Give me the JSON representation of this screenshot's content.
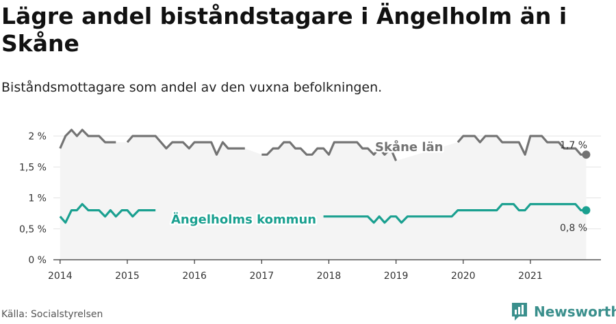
{
  "title": "Lägre andel biståndstagare i Ängelholm än i Skåne",
  "subtitle": "Biståndsmottagare som andel av den vuxna befolkningen.",
  "source": "Källa: Socialstyrelsen",
  "brand": {
    "name": "Newsworthy",
    "icon": "newsworthy-logo-icon"
  },
  "colors": {
    "skane": "#737373",
    "angelholm": "#1aa090",
    "area": "#f4f4f4",
    "grid": "#e3e3e3",
    "axis": "#333333"
  },
  "chart_data": {
    "type": "line",
    "ylim": [
      0,
      2.1
    ],
    "yticks": [
      {
        "v": 0,
        "label": "0 %"
      },
      {
        "v": 0.5,
        "label": "0,5 %"
      },
      {
        "v": 1,
        "label": "1 %"
      },
      {
        "v": 1.5,
        "label": "1,5 %"
      },
      {
        "v": 2,
        "label": "2 %"
      }
    ],
    "xlim": [
      2013.9,
      2022.05
    ],
    "xticks": [
      {
        "v": 2014,
        "label": "2014"
      },
      {
        "v": 2015,
        "label": "2015"
      },
      {
        "v": 2016,
        "label": "2016"
      },
      {
        "v": 2017,
        "label": "2017"
      },
      {
        "v": 2018,
        "label": "2018"
      },
      {
        "v": 2019,
        "label": "2019"
      },
      {
        "v": 2020,
        "label": "2020"
      },
      {
        "v": 2021,
        "label": "2021"
      }
    ],
    "grid": true,
    "series": [
      {
        "name": "Skåne län",
        "end_label": "1,7 %",
        "x": [
          2014.0,
          2014.08,
          2014.17,
          2014.25,
          2014.33,
          2014.42,
          2014.5,
          2014.58,
          2014.67,
          2014.75,
          2014.83,
          2014.92,
          2015.0,
          2015.08,
          2015.17,
          2015.25,
          2015.33,
          2015.42,
          2015.5,
          2015.58,
          2015.67,
          2015.75,
          2015.83,
          2015.92,
          2016.0,
          2016.08,
          2016.17,
          2016.25,
          2016.33,
          2016.42,
          2016.5,
          2016.58,
          2016.67,
          2016.75,
          2016.83,
          2016.92,
          2017.0,
          2017.08,
          2017.17,
          2017.25,
          2017.33,
          2017.42,
          2017.5,
          2017.58,
          2017.67,
          2017.75,
          2017.83,
          2017.92,
          2018.0,
          2018.08,
          2018.17,
          2018.25,
          2018.33,
          2018.42,
          2018.5,
          2018.58,
          2018.67,
          2018.75,
          2018.83,
          2018.92,
          2019.0,
          2019.08,
          2019.17,
          2019.25,
          2019.33,
          2019.42,
          2019.5,
          2019.58,
          2019.67,
          2019.75,
          2019.83,
          2019.92,
          2020.0,
          2020.08,
          2020.17,
          2020.25,
          2020.33,
          2020.42,
          2020.5,
          2020.58,
          2020.67,
          2020.75,
          2020.83,
          2020.92,
          2021.0,
          2021.08,
          2021.17,
          2021.25,
          2021.33,
          2021.42,
          2021.5,
          2021.58,
          2021.67,
          2021.75,
          2021.83
        ],
        "values": [
          1.8,
          2.0,
          2.1,
          2.0,
          2.1,
          2.0,
          2.0,
          2.0,
          1.9,
          1.9,
          1.9,
          null,
          1.9,
          2.0,
          2.0,
          2.0,
          2.0,
          2.0,
          1.9,
          1.8,
          1.9,
          1.9,
          1.9,
          1.8,
          1.9,
          1.9,
          1.9,
          1.9,
          1.7,
          1.9,
          1.8,
          1.8,
          1.8,
          1.8,
          null,
          null,
          1.7,
          1.7,
          1.8,
          1.8,
          1.9,
          1.9,
          1.8,
          1.8,
          1.7,
          1.7,
          1.8,
          1.8,
          1.7,
          1.9,
          1.9,
          1.9,
          1.9,
          1.9,
          1.8,
          1.8,
          1.7,
          1.8,
          1.7,
          1.8,
          1.6,
          null,
          null,
          null,
          null,
          null,
          null,
          null,
          null,
          null,
          null,
          1.9,
          2.0,
          2.0,
          2.0,
          1.9,
          2.0,
          2.0,
          2.0,
          1.9,
          1.9,
          1.9,
          1.9,
          1.7,
          2.0,
          2.0,
          2.0,
          1.9,
          1.9,
          1.9,
          1.8,
          1.8,
          1.8,
          1.7,
          1.7
        ]
      },
      {
        "name": "Ängelholms kommun",
        "end_label": "0,8 %",
        "x": [
          2014.0,
          2014.08,
          2014.17,
          2014.25,
          2014.33,
          2014.42,
          2014.5,
          2014.58,
          2014.67,
          2014.75,
          2014.83,
          2014.92,
          2015.0,
          2015.08,
          2015.17,
          2015.25,
          2015.33,
          2015.42,
          2015.5,
          2015.58,
          2015.67,
          2015.75,
          2015.83,
          2015.92,
          2016.0,
          2016.08,
          2016.17,
          2016.25,
          2016.33,
          2016.42,
          2016.5,
          2016.58,
          2016.67,
          2016.75,
          2016.83,
          2016.92,
          2017.0,
          2017.08,
          2017.17,
          2017.25,
          2017.33,
          2017.42,
          2017.5,
          2017.58,
          2017.67,
          2017.75,
          2017.83,
          2017.92,
          2018.0,
          2018.08,
          2018.17,
          2018.25,
          2018.33,
          2018.42,
          2018.5,
          2018.58,
          2018.67,
          2018.75,
          2018.83,
          2018.92,
          2019.0,
          2019.08,
          2019.17,
          2019.25,
          2019.33,
          2019.42,
          2019.5,
          2019.58,
          2019.67,
          2019.75,
          2019.83,
          2019.92,
          2020.0,
          2020.08,
          2020.17,
          2020.25,
          2020.33,
          2020.42,
          2020.5,
          2020.58,
          2020.67,
          2020.75,
          2020.83,
          2020.92,
          2021.0,
          2021.08,
          2021.17,
          2021.25,
          2021.33,
          2021.42,
          2021.5,
          2021.58,
          2021.67,
          2021.75,
          2021.83
        ],
        "values": [
          0.7,
          0.6,
          0.8,
          0.8,
          0.9,
          0.8,
          0.8,
          0.8,
          0.7,
          0.8,
          0.7,
          0.8,
          0.8,
          0.7,
          0.8,
          0.8,
          0.8,
          0.8,
          null,
          null,
          null,
          null,
          null,
          null,
          null,
          null,
          null,
          null,
          null,
          null,
          null,
          null,
          null,
          null,
          null,
          null,
          null,
          null,
          null,
          null,
          null,
          null,
          null,
          null,
          null,
          null,
          null,
          0.7,
          0.7,
          0.7,
          0.7,
          0.7,
          0.7,
          0.7,
          0.7,
          0.7,
          0.6,
          0.7,
          0.6,
          0.7,
          0.7,
          0.6,
          0.7,
          0.7,
          0.7,
          0.7,
          0.7,
          0.7,
          0.7,
          0.7,
          0.7,
          0.8,
          0.8,
          0.8,
          0.8,
          0.8,
          0.8,
          0.8,
          0.8,
          0.9,
          0.9,
          0.9,
          0.8,
          0.8,
          0.9,
          0.9,
          0.9,
          0.9,
          0.9,
          0.9,
          0.9,
          0.9,
          0.9,
          0.8,
          0.8
        ]
      }
    ]
  }
}
